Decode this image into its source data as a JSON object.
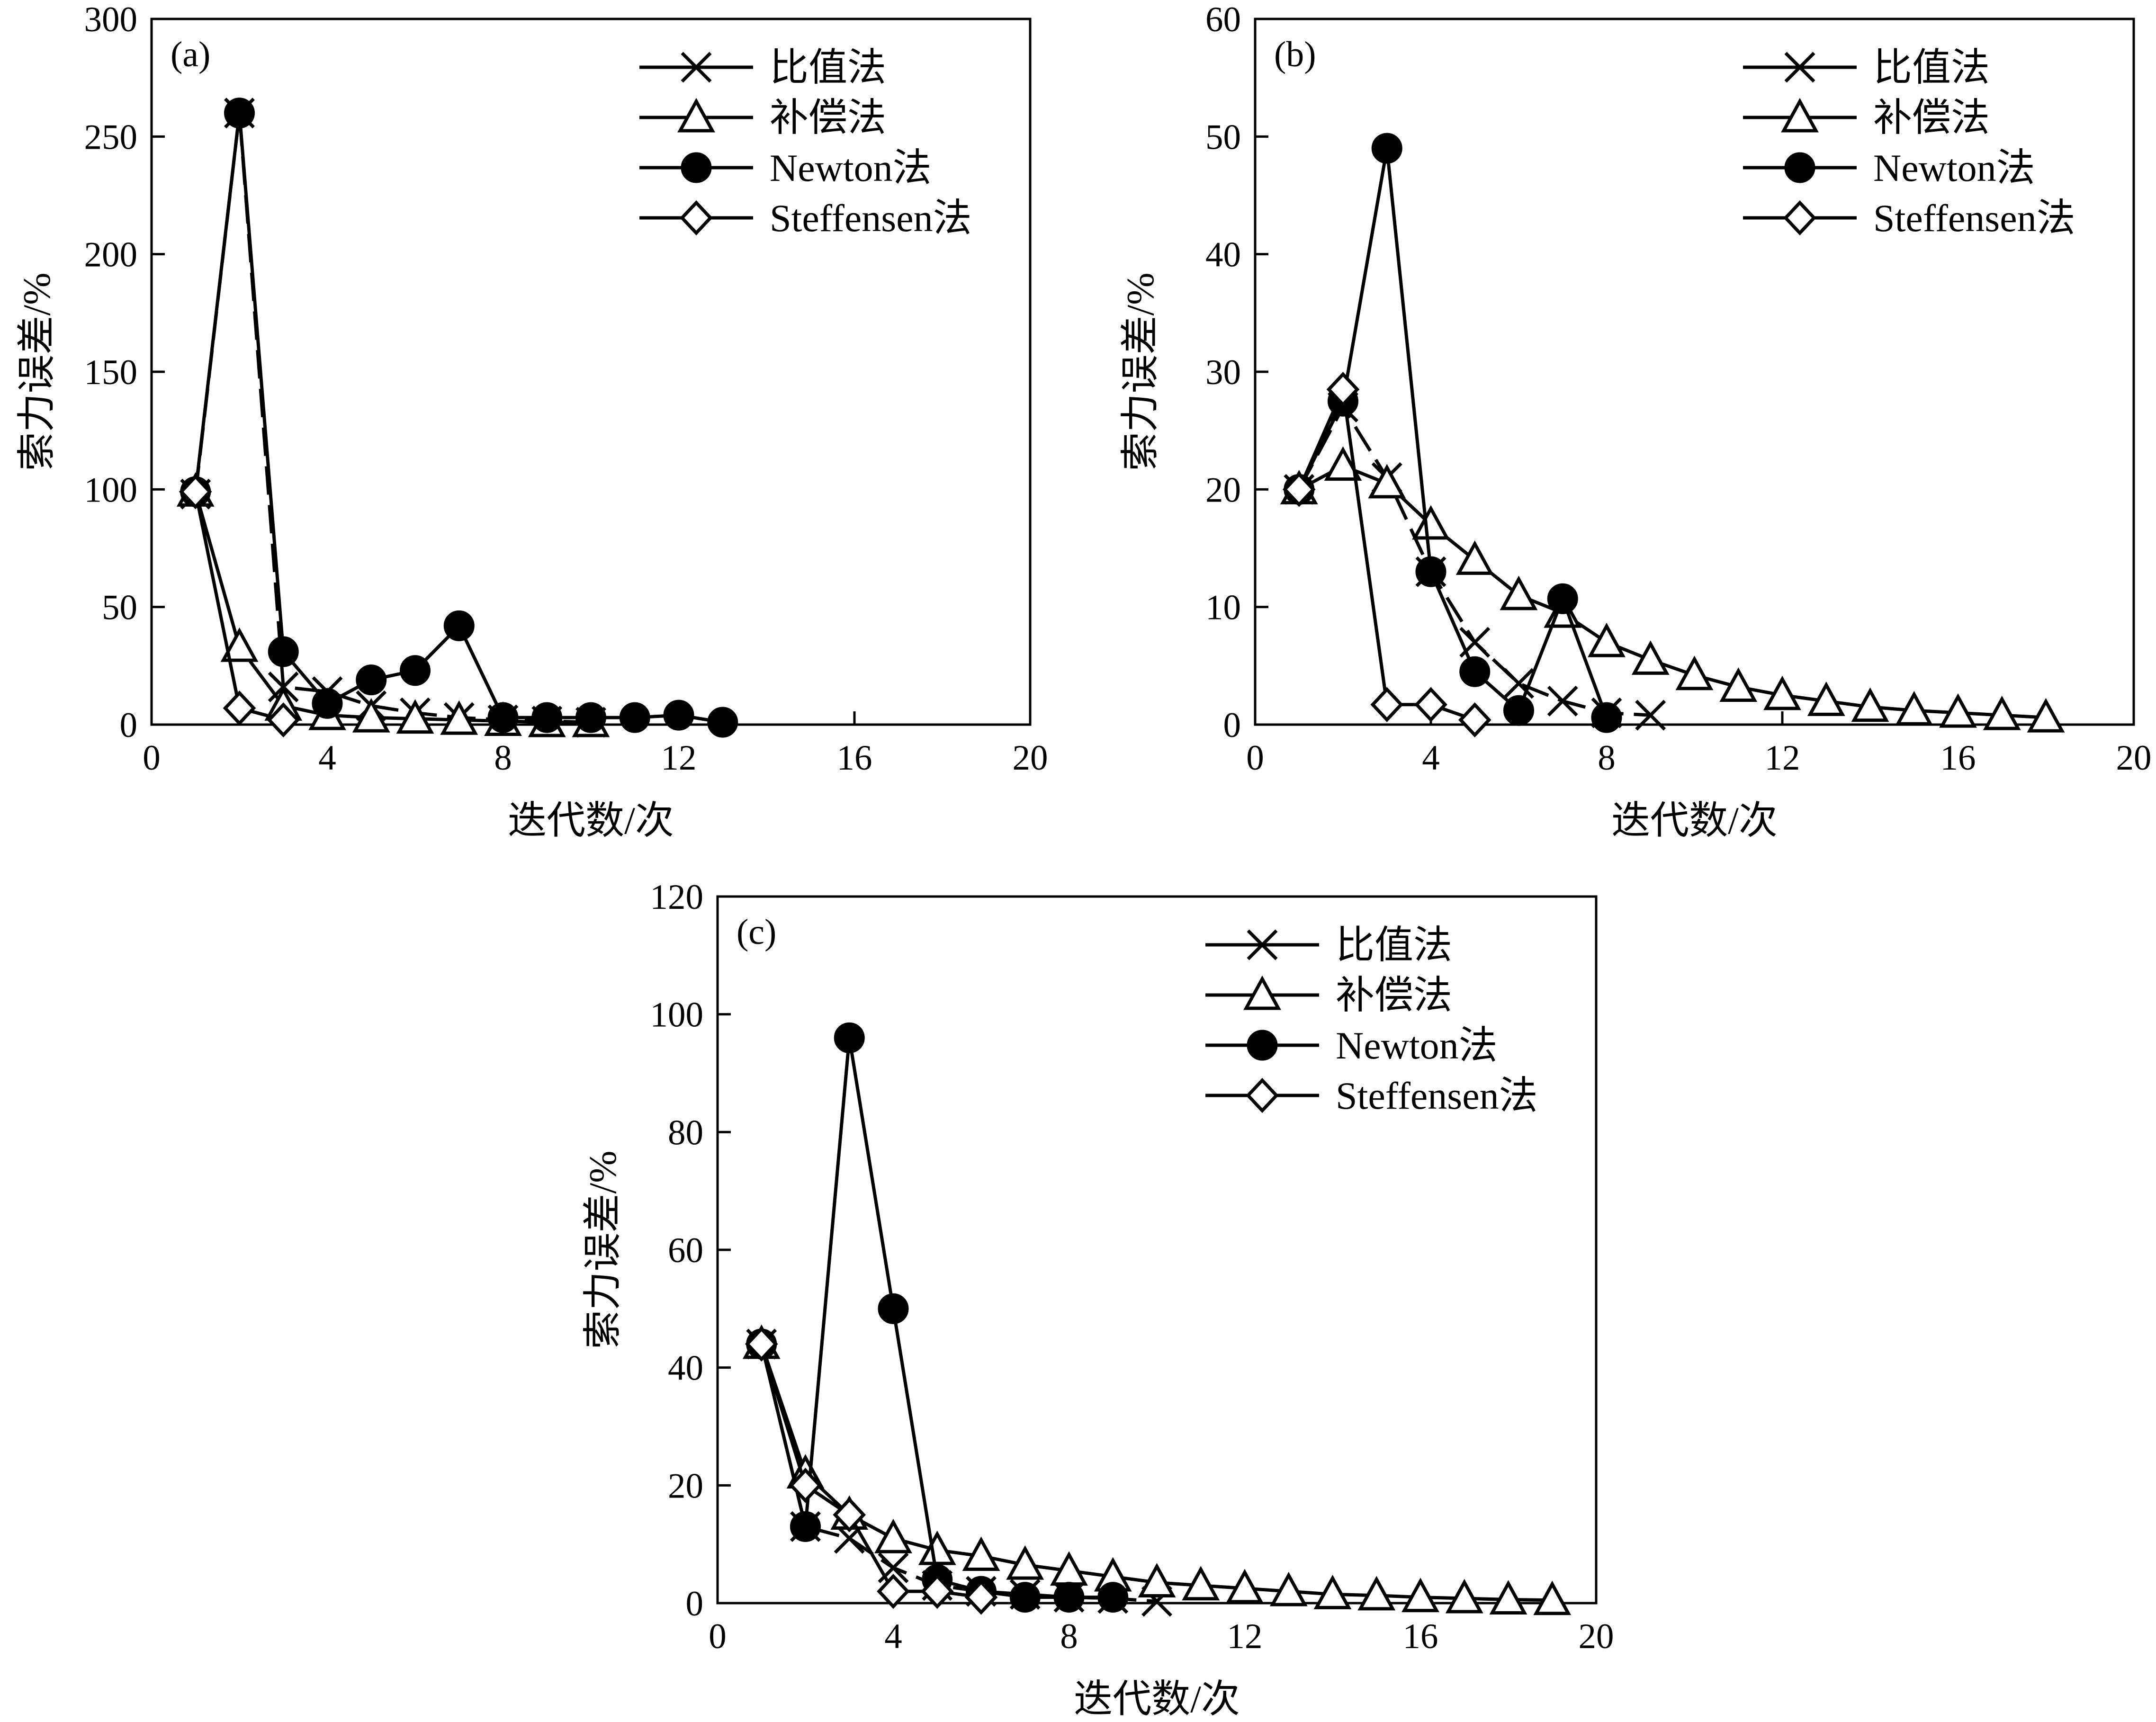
{
  "chart_data": [
    {
      "type": "line",
      "panel_label": "(a)",
      "xlabel": "迭代数/次",
      "ylabel": "索力误差/%",
      "xlim": [
        0,
        20
      ],
      "ylim": [
        0,
        300
      ],
      "x_ticks": [
        0,
        4,
        8,
        12,
        16,
        20
      ],
      "y_ticks": [
        0,
        50,
        100,
        150,
        200,
        250,
        300
      ],
      "x_tick_labels": [
        "0",
        "4",
        "8",
        "12",
        "16",
        "20"
      ],
      "y_tick_labels": [
        "0",
        "50",
        "100",
        "150",
        "200",
        "250",
        "300"
      ],
      "grid": false,
      "legend_position": "top-right",
      "series": [
        {
          "name": "比值法",
          "marker": "x",
          "x": [
            1,
            2,
            3,
            4,
            5,
            6,
            7,
            8,
            9,
            10
          ],
          "y": [
            98,
            260,
            16,
            14,
            8,
            5,
            3,
            2,
            1.5,
            1
          ]
        },
        {
          "name": "补偿法",
          "marker": "triangle",
          "x": [
            1,
            2,
            3,
            4,
            5,
            6,
            7,
            8,
            9,
            10
          ],
          "y": [
            99,
            33,
            8,
            4,
            3,
            2.5,
            2,
            1.5,
            1,
            1
          ]
        },
        {
          "name": "Newton法",
          "marker": "circle",
          "x": [
            1,
            2,
            3,
            4,
            5,
            6,
            7,
            8,
            9,
            10,
            11,
            12,
            13
          ],
          "y": [
            99,
            260,
            31,
            9,
            19,
            23,
            42,
            3,
            3,
            3,
            3,
            4,
            1
          ]
        },
        {
          "name": "Steffensen法",
          "marker": "diamond",
          "x": [
            1,
            2,
            3
          ],
          "y": [
            99,
            7,
            2
          ]
        }
      ]
    },
    {
      "type": "line",
      "panel_label": "(b)",
      "xlabel": "迭代数/次",
      "ylabel": "索力误差/%",
      "xlim": [
        0,
        20
      ],
      "ylim": [
        0,
        60
      ],
      "x_ticks": [
        0,
        4,
        8,
        12,
        16,
        20
      ],
      "y_ticks": [
        0,
        10,
        20,
        30,
        40,
        50,
        60
      ],
      "x_tick_labels": [
        "0",
        "4",
        "8",
        "12",
        "16",
        "20"
      ],
      "y_tick_labels": [
        "0",
        "10",
        "20",
        "30",
        "40",
        "50",
        "60"
      ],
      "grid": false,
      "legend_position": "top-right",
      "series": [
        {
          "name": "比值法",
          "marker": "x",
          "x": [
            1,
            2,
            3,
            4,
            5,
            6,
            7,
            8,
            9
          ],
          "y": [
            20,
            27,
            21,
            13,
            7,
            3.5,
            2,
            1,
            0.8
          ]
        },
        {
          "name": "补偿法",
          "marker": "triangle",
          "x": [
            1,
            2,
            3,
            4,
            5,
            6,
            7,
            8,
            9,
            10,
            11,
            12,
            13,
            14,
            15,
            16,
            17,
            18
          ],
          "y": [
            20,
            22,
            20.5,
            17,
            14,
            11,
            9.5,
            7,
            5.5,
            4.2,
            3.2,
            2.5,
            2,
            1.5,
            1.2,
            1,
            0.8,
            0.6
          ]
        },
        {
          "name": "Newton法",
          "marker": "circle",
          "x": [
            1,
            2,
            3,
            4,
            5,
            6,
            7,
            8
          ],
          "y": [
            20,
            27.5,
            49,
            13,
            4.5,
            1.2,
            10.7,
            0.6
          ]
        },
        {
          "name": "Steffensen法",
          "marker": "diamond",
          "x": [
            1,
            2,
            3,
            4,
            5
          ],
          "y": [
            20,
            28.5,
            1.7,
            1.7,
            0.4
          ]
        }
      ]
    },
    {
      "type": "line",
      "panel_label": "(c)",
      "xlabel": "迭代数/次",
      "ylabel": "索力误差/%",
      "xlim": [
        0,
        20
      ],
      "ylim": [
        0,
        120
      ],
      "x_ticks": [
        0,
        4,
        8,
        12,
        16,
        20
      ],
      "y_ticks": [
        0,
        20,
        40,
        60,
        80,
        100,
        120
      ],
      "x_tick_labels": [
        "0",
        "4",
        "8",
        "12",
        "16",
        "20"
      ],
      "y_tick_labels": [
        "0",
        "20",
        "40",
        "60",
        "80",
        "100",
        "120"
      ],
      "grid": false,
      "legend_position": "top-right",
      "series": [
        {
          "name": "比值法",
          "marker": "x",
          "x": [
            1,
            2,
            3,
            4,
            5,
            6,
            7,
            8,
            9,
            10
          ],
          "y": [
            44,
            13,
            11,
            6,
            3,
            2,
            1.5,
            1,
            0.8,
            0.3
          ]
        },
        {
          "name": "补偿法",
          "marker": "triangle",
          "x": [
            1,
            2,
            3,
            4,
            5,
            6,
            7,
            8,
            9,
            10,
            11,
            12,
            13,
            14,
            15,
            16,
            17,
            18,
            19
          ],
          "y": [
            44,
            22,
            15,
            11,
            9,
            8,
            6.5,
            5.5,
            4.5,
            3.5,
            3,
            2.5,
            2,
            1.5,
            1.3,
            1,
            0.8,
            0.6,
            0.5
          ]
        },
        {
          "name": "Newton法",
          "marker": "circle",
          "x": [
            1,
            2,
            3,
            4,
            5,
            6,
            7,
            8,
            9
          ],
          "y": [
            44,
            13,
            96,
            50,
            4,
            2,
            1,
            1,
            1
          ]
        },
        {
          "name": "Steffensen法",
          "marker": "diamond",
          "x": [
            1,
            2,
            3,
            4,
            5,
            6
          ],
          "y": [
            44,
            20,
            15,
            2,
            2,
            1
          ]
        }
      ]
    }
  ]
}
